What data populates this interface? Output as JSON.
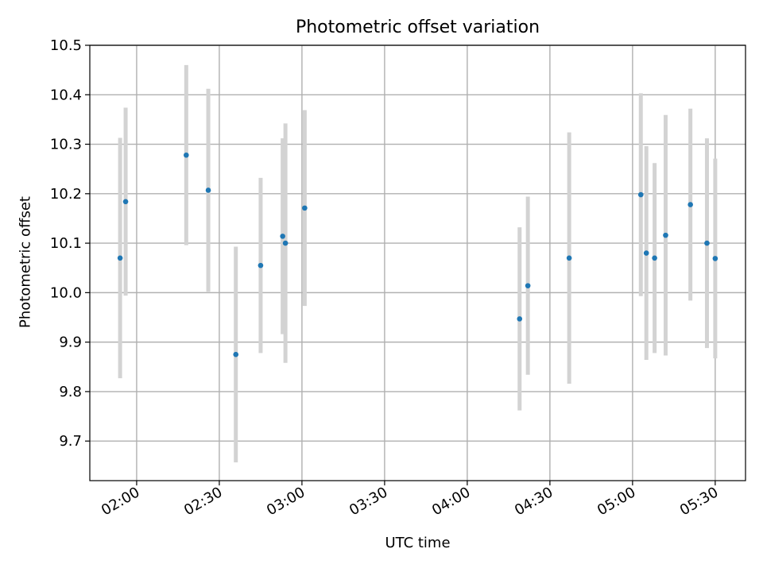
{
  "chart_data": {
    "type": "scatter",
    "title": "Photometric offset variation",
    "xlabel": "UTC time",
    "ylabel": "Photometric offset",
    "xlim": [
      "01:43",
      "05:41"
    ],
    "ylim": [
      9.62,
      10.5
    ],
    "grid": true,
    "x_ticks": [
      "02:00",
      "02:30",
      "03:00",
      "03:30",
      "04:00",
      "04:30",
      "05:00",
      "05:30"
    ],
    "y_ticks": [
      "9.7",
      "9.8",
      "9.9",
      "10.0",
      "10.1",
      "10.2",
      "10.3",
      "10.4",
      "10.5"
    ],
    "point_color": "#1f77b4",
    "errorbar_color": "#d3d3d3",
    "series": [
      {
        "x": [
          "01:54",
          "01:56",
          "02:18",
          "02:26",
          "02:36",
          "02:45",
          "02:53",
          "02:54",
          "03:01",
          "04:19",
          "04:22",
          "04:37",
          "05:03",
          "05:05",
          "05:08",
          "05:12",
          "05:21",
          "05:27",
          "05:30"
        ],
        "y": [
          10.07,
          10.184,
          10.278,
          10.207,
          9.875,
          10.055,
          10.114,
          10.1,
          10.171,
          9.947,
          10.014,
          10.07,
          10.198,
          10.08,
          10.07,
          10.116,
          10.178,
          10.1,
          10.069
        ],
        "yerr": [
          0.243,
          0.19,
          0.182,
          0.205,
          0.218,
          0.177,
          0.198,
          0.242,
          0.198,
          0.185,
          0.18,
          0.254,
          0.205,
          0.216,
          0.192,
          0.243,
          0.194,
          0.212,
          0.202
        ]
      }
    ]
  }
}
